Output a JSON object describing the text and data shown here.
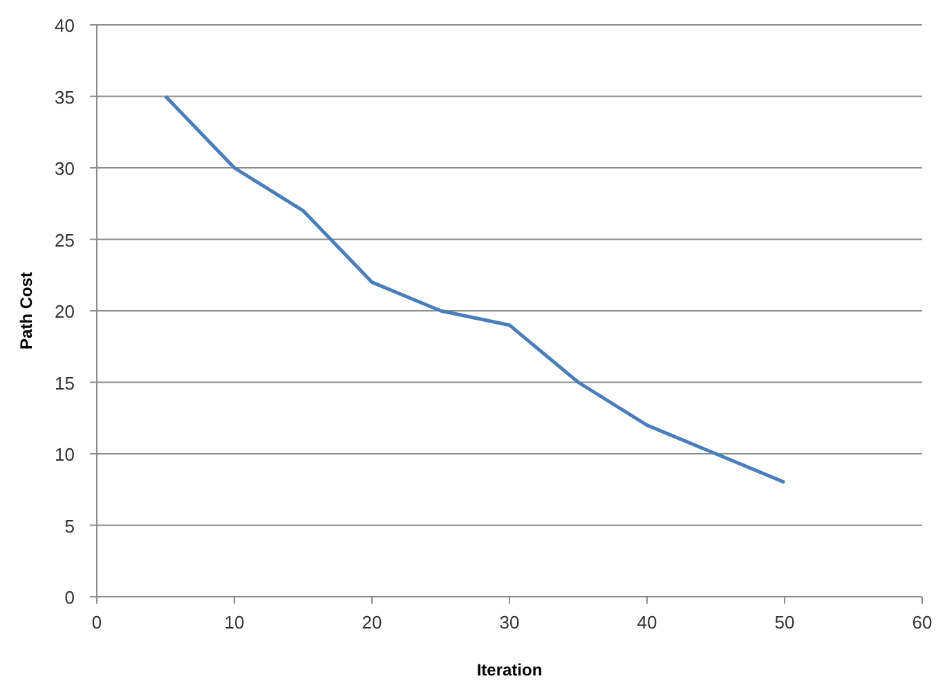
{
  "chart_data": {
    "type": "line",
    "xlabel": "Iteration",
    "ylabel": "Path Cost",
    "x": [
      5,
      10,
      15,
      20,
      25,
      30,
      35,
      40,
      45,
      50
    ],
    "series": [
      {
        "color": "#4a7ebb",
        "values": [
          35,
          30,
          27,
          22,
          20,
          19,
          15,
          12,
          10,
          8
        ]
      }
    ],
    "xlim": [
      0,
      60
    ],
    "xticks": [
      0,
      10,
      20,
      30,
      40,
      50,
      60
    ],
    "ylim": [
      0,
      40
    ],
    "yticks": [
      0,
      5,
      10,
      15,
      20,
      25,
      30,
      35,
      40
    ],
    "grid": "y",
    "marker": "none",
    "line_style": "solid"
  }
}
